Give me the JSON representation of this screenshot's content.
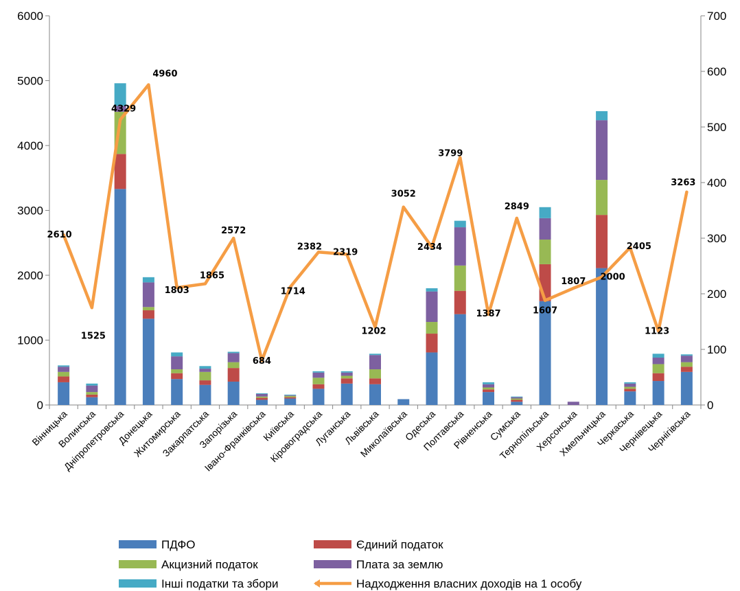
{
  "chart_data": {
    "type": "bar",
    "stacked": true,
    "title": "",
    "categories": [
      "Вінницька",
      "Волинська",
      "Дніпропетровська",
      "Донецька",
      "Житомирська",
      "Закарпатська",
      "Запорізька",
      "Івано-Франківська",
      "Київська",
      "Кіровоградська",
      "Луганська",
      "Львівська",
      "Миколаївська",
      "Одеська",
      "Полтавська",
      "Рівненська",
      "Сумська",
      "Тернопільська",
      "Херсонська",
      "Хмельницька",
      "Черкаська",
      "Чернівецька",
      "Чернігівська"
    ],
    "y_left": {
      "min": 0,
      "max": 6000,
      "ticks": [
        "0",
        "1000",
        "2000",
        "3000",
        "4000",
        "5000",
        "6000"
      ]
    },
    "y_right": {
      "min": 0,
      "max": 700,
      "ticks": [
        "0",
        "100",
        "200",
        "300",
        "400",
        "500",
        "600",
        "700"
      ]
    },
    "series": [
      {
        "name": "ПДФО",
        "color": "#4a7ebb",
        "axis": "left",
        "values": [
          350,
          120,
          3330,
          1330,
          400,
          310,
          360,
          80,
          100,
          250,
          330,
          320,
          90,
          810,
          1400,
          200,
          50,
          1600,
          0,
          2110,
          210,
          370,
          510
        ]
      },
      {
        "name": "Єдиний податок",
        "color": "#be4b48",
        "axis": "left",
        "values": [
          90,
          40,
          540,
          130,
          90,
          70,
          210,
          30,
          20,
          70,
          80,
          90,
          0,
          290,
          360,
          40,
          30,
          570,
          0,
          820,
          40,
          120,
          80
        ]
      },
      {
        "name": "Акцизний податок",
        "color": "#98b954",
        "axis": "left",
        "values": [
          70,
          40,
          650,
          50,
          60,
          130,
          90,
          20,
          20,
          100,
          40,
          140,
          0,
          180,
          390,
          30,
          20,
          380,
          0,
          540,
          30,
          140,
          70
        ]
      },
      {
        "name": "Плата за землю",
        "color": "#7d60a0",
        "axis": "left",
        "values": [
          80,
          100,
          90,
          380,
          200,
          50,
          140,
          40,
          10,
          80,
          50,
          220,
          0,
          470,
          590,
          50,
          20,
          330,
          50,
          920,
          50,
          100,
          100
        ]
      },
      {
        "name": "Інші податки та збори",
        "color": "#46aac5",
        "axis": "left",
        "values": [
          20,
          30,
          350,
          80,
          60,
          40,
          20,
          10,
          10,
          20,
          20,
          20,
          0,
          50,
          100,
          30,
          10,
          170,
          0,
          140,
          20,
          60,
          20
        ]
      },
      {
        "name": "Надходження власних доходів на 1 особу",
        "color": "#f59d45",
        "axis": "right",
        "type": "line",
        "values": [
          306,
          175,
          513,
          576,
          211,
          218,
          300,
          80,
          212,
          275,
          271,
          140,
          356,
          284,
          445,
          163,
          336,
          188,
          210,
          230,
          283,
          133,
          383
        ],
        "labels": [
          "2610",
          "1525",
          "4329",
          "4960",
          "1803",
          "1865",
          "2572",
          "684",
          "1714",
          "2382",
          "2319",
          "1202",
          "3052",
          "2434",
          "3799",
          "1387",
          "2849",
          "1607",
          "1807",
          "2000",
          "2405",
          "1123",
          "3263"
        ]
      }
    ],
    "legend": {
      "placement": "bottom",
      "columns": 2
    }
  }
}
